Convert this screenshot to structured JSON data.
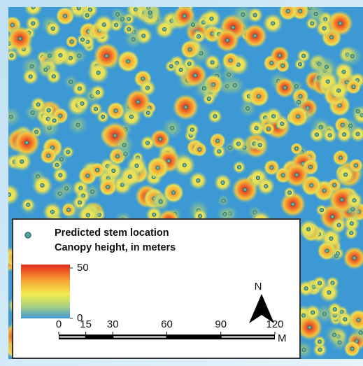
{
  "legend": {
    "stem_label": "Predicted stem location",
    "canopy_label": "Canopy height, in meters",
    "colorbar": {
      "ticks": [
        0,
        50
      ]
    }
  },
  "north_label": "N",
  "scalebar": {
    "ticks": [
      0,
      15,
      30,
      60,
      90,
      120
    ],
    "unit": "M"
  }
}
